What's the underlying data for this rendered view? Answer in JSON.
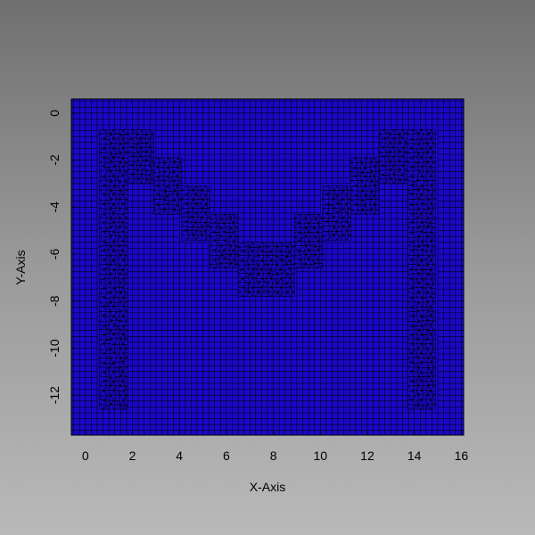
{
  "chart_data": {
    "type": "heatmap",
    "title": "",
    "xlabel": "X-Axis",
    "ylabel": "Y-Axis",
    "xlim": [
      -0.6,
      16.1
    ],
    "ylim": [
      -13.7,
      0.6
    ],
    "xticks": [
      0,
      2,
      4,
      6,
      8,
      10,
      12,
      14,
      16
    ],
    "yticks": [
      0,
      -2,
      -4,
      -6,
      -8,
      -10,
      -12
    ],
    "grid": false,
    "legend": "none",
    "mesh": {
      "background": "quadrilateral",
      "refined": "triangular",
      "cell_size": 0.25
    },
    "refined_regions": [
      {
        "x": [
          0.6,
          1.8
        ],
        "y": [
          -12.6,
          -0.7
        ]
      },
      {
        "x": [
          1.8,
          2.9
        ],
        "y": [
          -3.0,
          -0.7
        ]
      },
      {
        "x": [
          2.9,
          4.1
        ],
        "y": [
          -4.3,
          -1.9
        ]
      },
      {
        "x": [
          4.1,
          5.3
        ],
        "y": [
          -5.4,
          -3.1
        ]
      },
      {
        "x": [
          5.3,
          6.5
        ],
        "y": [
          -6.6,
          -4.3
        ]
      },
      {
        "x": [
          6.5,
          8.9
        ],
        "y": [
          -7.8,
          -5.5
        ]
      },
      {
        "x": [
          8.9,
          10.1
        ],
        "y": [
          -6.6,
          -4.3
        ]
      },
      {
        "x": [
          10.1,
          11.3
        ],
        "y": [
          -5.4,
          -3.1
        ]
      },
      {
        "x": [
          11.3,
          12.5
        ],
        "y": [
          -4.3,
          -1.9
        ]
      },
      {
        "x": [
          12.5,
          13.7
        ],
        "y": [
          -3.0,
          -0.7
        ]
      },
      {
        "x": [
          13.7,
          14.9
        ],
        "y": [
          -12.6,
          -0.7
        ]
      }
    ],
    "colors": {
      "mesh_fill": "#1a08c8",
      "mesh_line": "#000000",
      "axis": "#000000"
    }
  }
}
